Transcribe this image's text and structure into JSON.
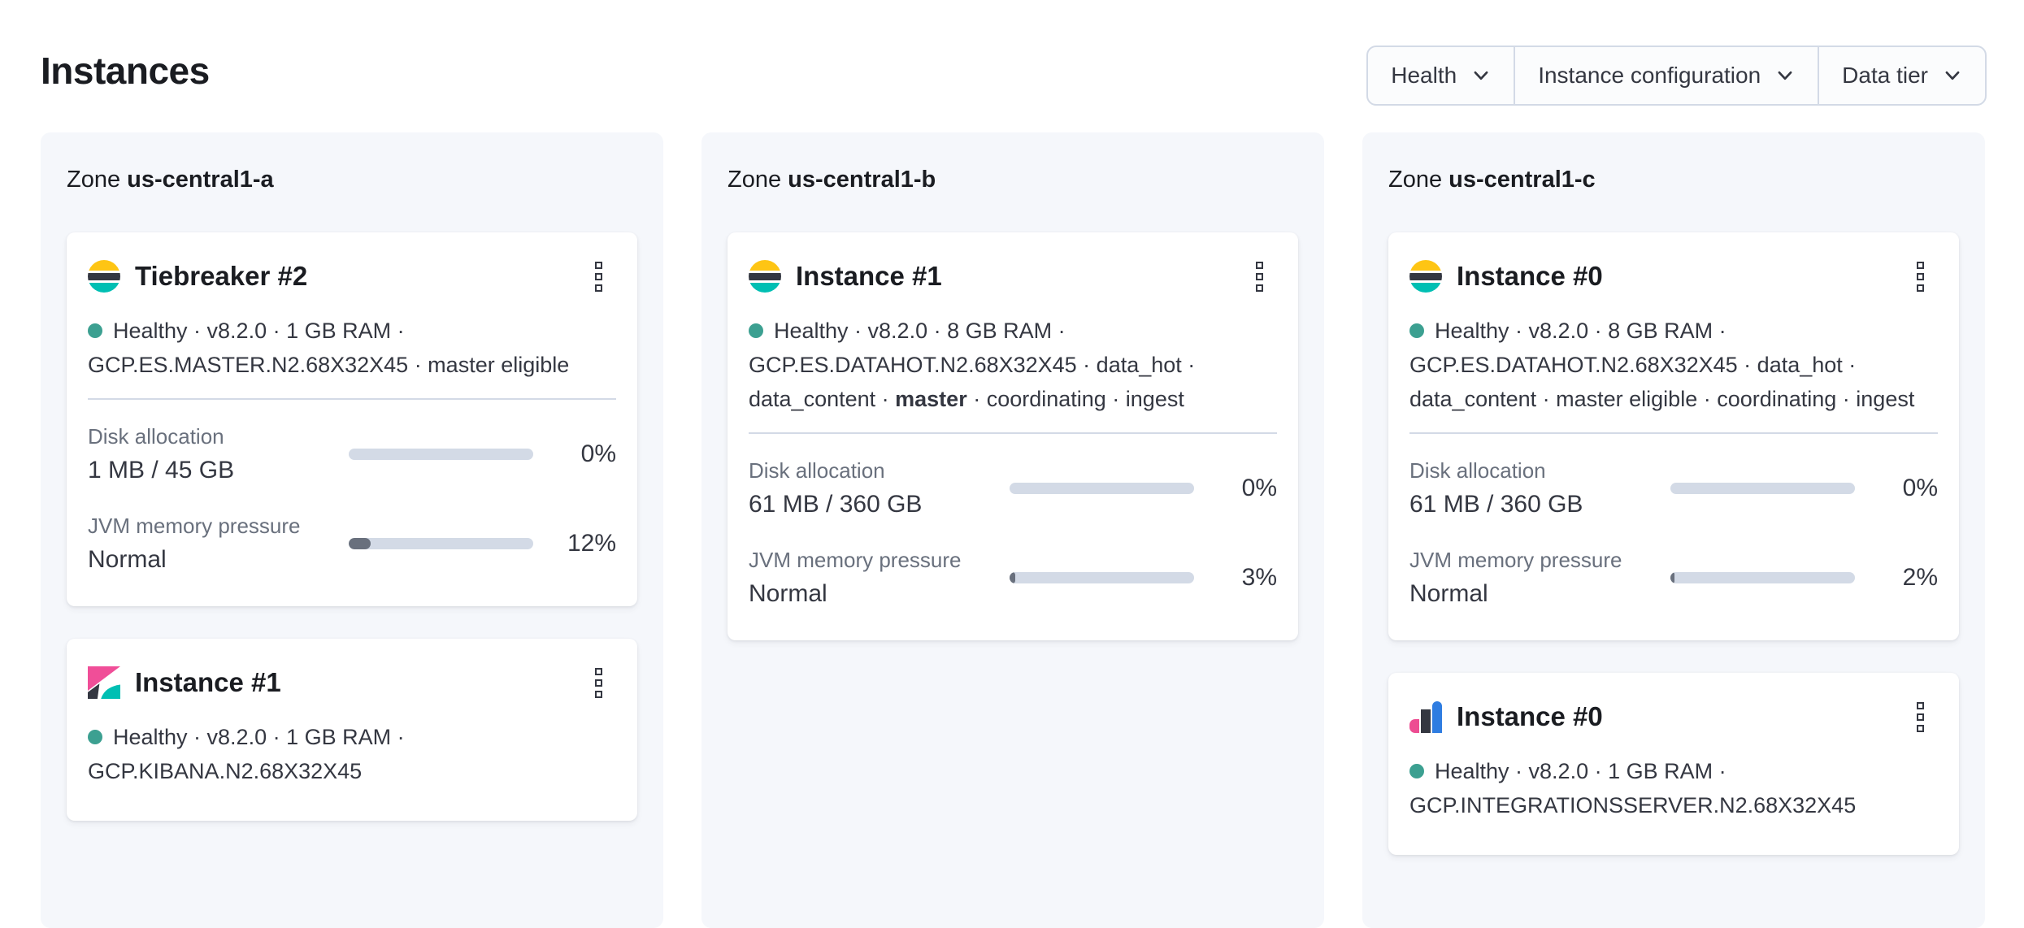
{
  "page_title": "Instances",
  "filters": {
    "health_label": "Health",
    "instance_configuration_label": "Instance configuration",
    "data_tier_label": "Data tier"
  },
  "colors": {
    "health_dot": "#3ca091",
    "elasticsearch_logo_yellow": "#fec514",
    "elasticsearch_logo_dark": "#343741",
    "elasticsearch_logo_teal": "#00bfb3",
    "kibana_logo_pink": "#f04e98",
    "integrations_logo_pink": "#ed4c92",
    "integrations_logo_blue": "#2f7de1",
    "meter_track": "#d3dae6",
    "meter_fill": "#69707d",
    "zone_panel_background": "#f5f7fb"
  },
  "zones": [
    {
      "prefix": "Zone",
      "name": "us-central1-a",
      "instances": [
        {
          "title": "Tiebreaker #2",
          "logo": "elasticsearch-logo",
          "status_line1": "Healthy · v8.2.0 · 1 GB RAM ·",
          "status_line2": "GCP.ES.MASTER.N2.68X32X45 · master eligible",
          "disk": {
            "label": "Disk allocation",
            "value": "1 MB / 45 GB",
            "percent": "0%",
            "percent_fill": 0
          },
          "jvm": {
            "label": "JVM memory pressure",
            "value": "Normal",
            "percent": "12%",
            "percent_fill": 12
          }
        },
        {
          "title": "Instance #1",
          "logo": "kibana-logo",
          "status_line1": "Healthy · v8.2.0 · 1 GB RAM ·",
          "status_line2": "GCP.KIBANA.N2.68X32X45"
        }
      ]
    },
    {
      "prefix": "Zone",
      "name": "us-central1-b",
      "instances": [
        {
          "title": "Instance #1",
          "logo": "elasticsearch-logo",
          "status_line1": "Healthy · v8.2.0 · 8 GB RAM ·",
          "status_line2": "GCP.ES.DATAHOT.N2.68X32X45 · data_hot ·",
          "status_line3_pre": "data_content · ",
          "status_line3_bold": "master",
          "status_line3_post": " · coordinating · ingest",
          "disk": {
            "label": "Disk allocation",
            "value": "61 MB / 360 GB",
            "percent": "0%",
            "percent_fill": 0
          },
          "jvm": {
            "label": "JVM memory pressure",
            "value": "Normal",
            "percent": "3%",
            "percent_fill": 3
          }
        }
      ]
    },
    {
      "prefix": "Zone",
      "name": "us-central1-c",
      "instances": [
        {
          "title": "Instance #0",
          "logo": "elasticsearch-logo",
          "status_line1": "Healthy · v8.2.0 · 8 GB RAM ·",
          "status_line2": "GCP.ES.DATAHOT.N2.68X32X45 · data_hot ·",
          "status_line3": "data_content · master eligible · coordinating · ingest",
          "disk": {
            "label": "Disk allocation",
            "value": "61 MB / 360 GB",
            "percent": "0%",
            "percent_fill": 0
          },
          "jvm": {
            "label": "JVM memory pressure",
            "value": "Normal",
            "percent": "2%",
            "percent_fill": 2
          }
        },
        {
          "title": "Instance #0",
          "logo": "integrations-server-logo",
          "status_line1": "Healthy · v8.2.0 · 1 GB RAM ·",
          "status_line2": "GCP.INTEGRATIONSSERVER.N2.68X32X45"
        }
      ]
    }
  ]
}
